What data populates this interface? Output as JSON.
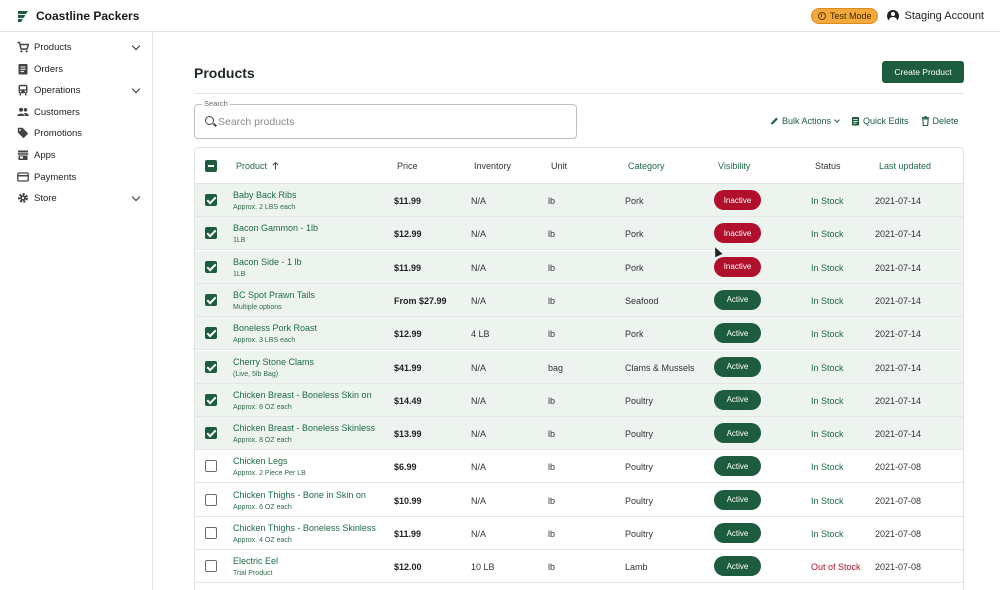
{
  "app": {
    "name": "Coastline Packers"
  },
  "topbar": {
    "mode_badge": "Test Mode",
    "account": "Staging Account"
  },
  "sidebar": {
    "items": [
      {
        "label": "Products",
        "icon": "cart-icon",
        "expandable": true
      },
      {
        "label": "Orders",
        "icon": "clipboard-icon",
        "expandable": false
      },
      {
        "label": "Operations",
        "icon": "truck-icon",
        "expandable": true
      },
      {
        "label": "Customers",
        "icon": "people-icon",
        "expandable": false
      },
      {
        "label": "Promotions",
        "icon": "tag-icon",
        "expandable": false
      },
      {
        "label": "Apps",
        "icon": "store-icon",
        "expandable": false
      },
      {
        "label": "Payments",
        "icon": "card-icon",
        "expandable": false
      },
      {
        "label": "Store",
        "icon": "gear-icon",
        "expandable": true
      }
    ]
  },
  "main": {
    "title": "Products",
    "create_label": "Create Product",
    "search": {
      "label": "Search",
      "placeholder": "Search products",
      "value": ""
    },
    "actions": {
      "bulk": "Bulk Actions",
      "quick": "Quick Edits",
      "delete": "Delete"
    }
  },
  "table": {
    "headers": {
      "product": "Product",
      "price": "Price",
      "inventory": "Inventory",
      "unit": "Unit",
      "category": "Category",
      "visibility": "Visibility",
      "status": "Status",
      "updated": "Last updated"
    },
    "rows": [
      {
        "name": "Baby Back Ribs",
        "sub": "Approx. 2 LBS each",
        "price": "$11.99",
        "inventory": "N/A",
        "unit": "lb",
        "category": "Pork",
        "visibility": "Inactive",
        "status": "In Stock",
        "updated": "2021-07-14",
        "selected": true
      },
      {
        "name": "Bacon Gammon - 1lb",
        "sub": "1LB",
        "price": "$12.99",
        "inventory": "N/A",
        "unit": "lb",
        "category": "Pork",
        "visibility": "Inactive",
        "status": "In Stock",
        "updated": "2021-07-14",
        "selected": true
      },
      {
        "name": "Bacon Side - 1 lb",
        "sub": "1LB",
        "price": "$11.99",
        "inventory": "N/A",
        "unit": "lb",
        "category": "Pork",
        "visibility": "Inactive",
        "status": "In Stock",
        "updated": "2021-07-14",
        "selected": true
      },
      {
        "name": "BC Spot Prawn Tails",
        "sub": "Multiple options",
        "price": "From $27.99",
        "inventory": "N/A",
        "unit": "lb",
        "category": "Seafood",
        "visibility": "Active",
        "status": "In Stock",
        "updated": "2021-07-14",
        "selected": true
      },
      {
        "name": "Boneless Pork Roast",
        "sub": "Approx. 3 LBS each",
        "price": "$12.99",
        "inventory": "4 LB",
        "unit": "lb",
        "category": "Pork",
        "visibility": "Active",
        "status": "In Stock",
        "updated": "2021-07-14",
        "selected": true
      },
      {
        "name": "Cherry Stone Clams",
        "sub": "(Live, 5lb Bag)",
        "price": "$41.99",
        "inventory": "N/A",
        "unit": "bag",
        "category": "Clams & Mussels",
        "visibility": "Active",
        "status": "In Stock",
        "updated": "2021-07-14",
        "selected": true
      },
      {
        "name": "Chicken Breast - Boneless Skin on",
        "sub": "Approx. 8 OZ each",
        "price": "$14.49",
        "inventory": "N/A",
        "unit": "lb",
        "category": "Poultry",
        "visibility": "Active",
        "status": "In Stock",
        "updated": "2021-07-14",
        "selected": true
      },
      {
        "name": "Chicken Breast - Boneless Skinless",
        "sub": "Approx. 8 OZ each",
        "price": "$13.99",
        "inventory": "N/A",
        "unit": "lb",
        "category": "Poultry",
        "visibility": "Active",
        "status": "In Stock",
        "updated": "2021-07-14",
        "selected": true
      },
      {
        "name": "Chicken Legs",
        "sub": "Approx. 2 Piece Per LB",
        "price": "$6.99",
        "inventory": "N/A",
        "unit": "lb",
        "category": "Poultry",
        "visibility": "Active",
        "status": "In Stock",
        "updated": "2021-07-08",
        "selected": false
      },
      {
        "name": "Chicken Thighs - Bone in Skin on",
        "sub": "Approx. 6 OZ each",
        "price": "$10.99",
        "inventory": "N/A",
        "unit": "lb",
        "category": "Poultry",
        "visibility": "Active",
        "status": "In Stock",
        "updated": "2021-07-08",
        "selected": false
      },
      {
        "name": "Chicken Thighs - Boneless Skinless",
        "sub": "Approx. 4 OZ each",
        "price": "$11.99",
        "inventory": "N/A",
        "unit": "lb",
        "category": "Poultry",
        "visibility": "Active",
        "status": "In Stock",
        "updated": "2021-07-08",
        "selected": false
      },
      {
        "name": "Electric Eel",
        "sub": "Trial Product",
        "price": "$12.00",
        "inventory": "10 LB",
        "unit": "lb",
        "category": "Lamb",
        "visibility": "Active",
        "status": "Out of Stock",
        "updated": "2021-07-08",
        "selected": false
      }
    ]
  },
  "colors": {
    "brand": "#1d5c3f",
    "inactive": "#b0102b",
    "badge": "#f6a93b",
    "selected_row": "#edf4ef"
  }
}
